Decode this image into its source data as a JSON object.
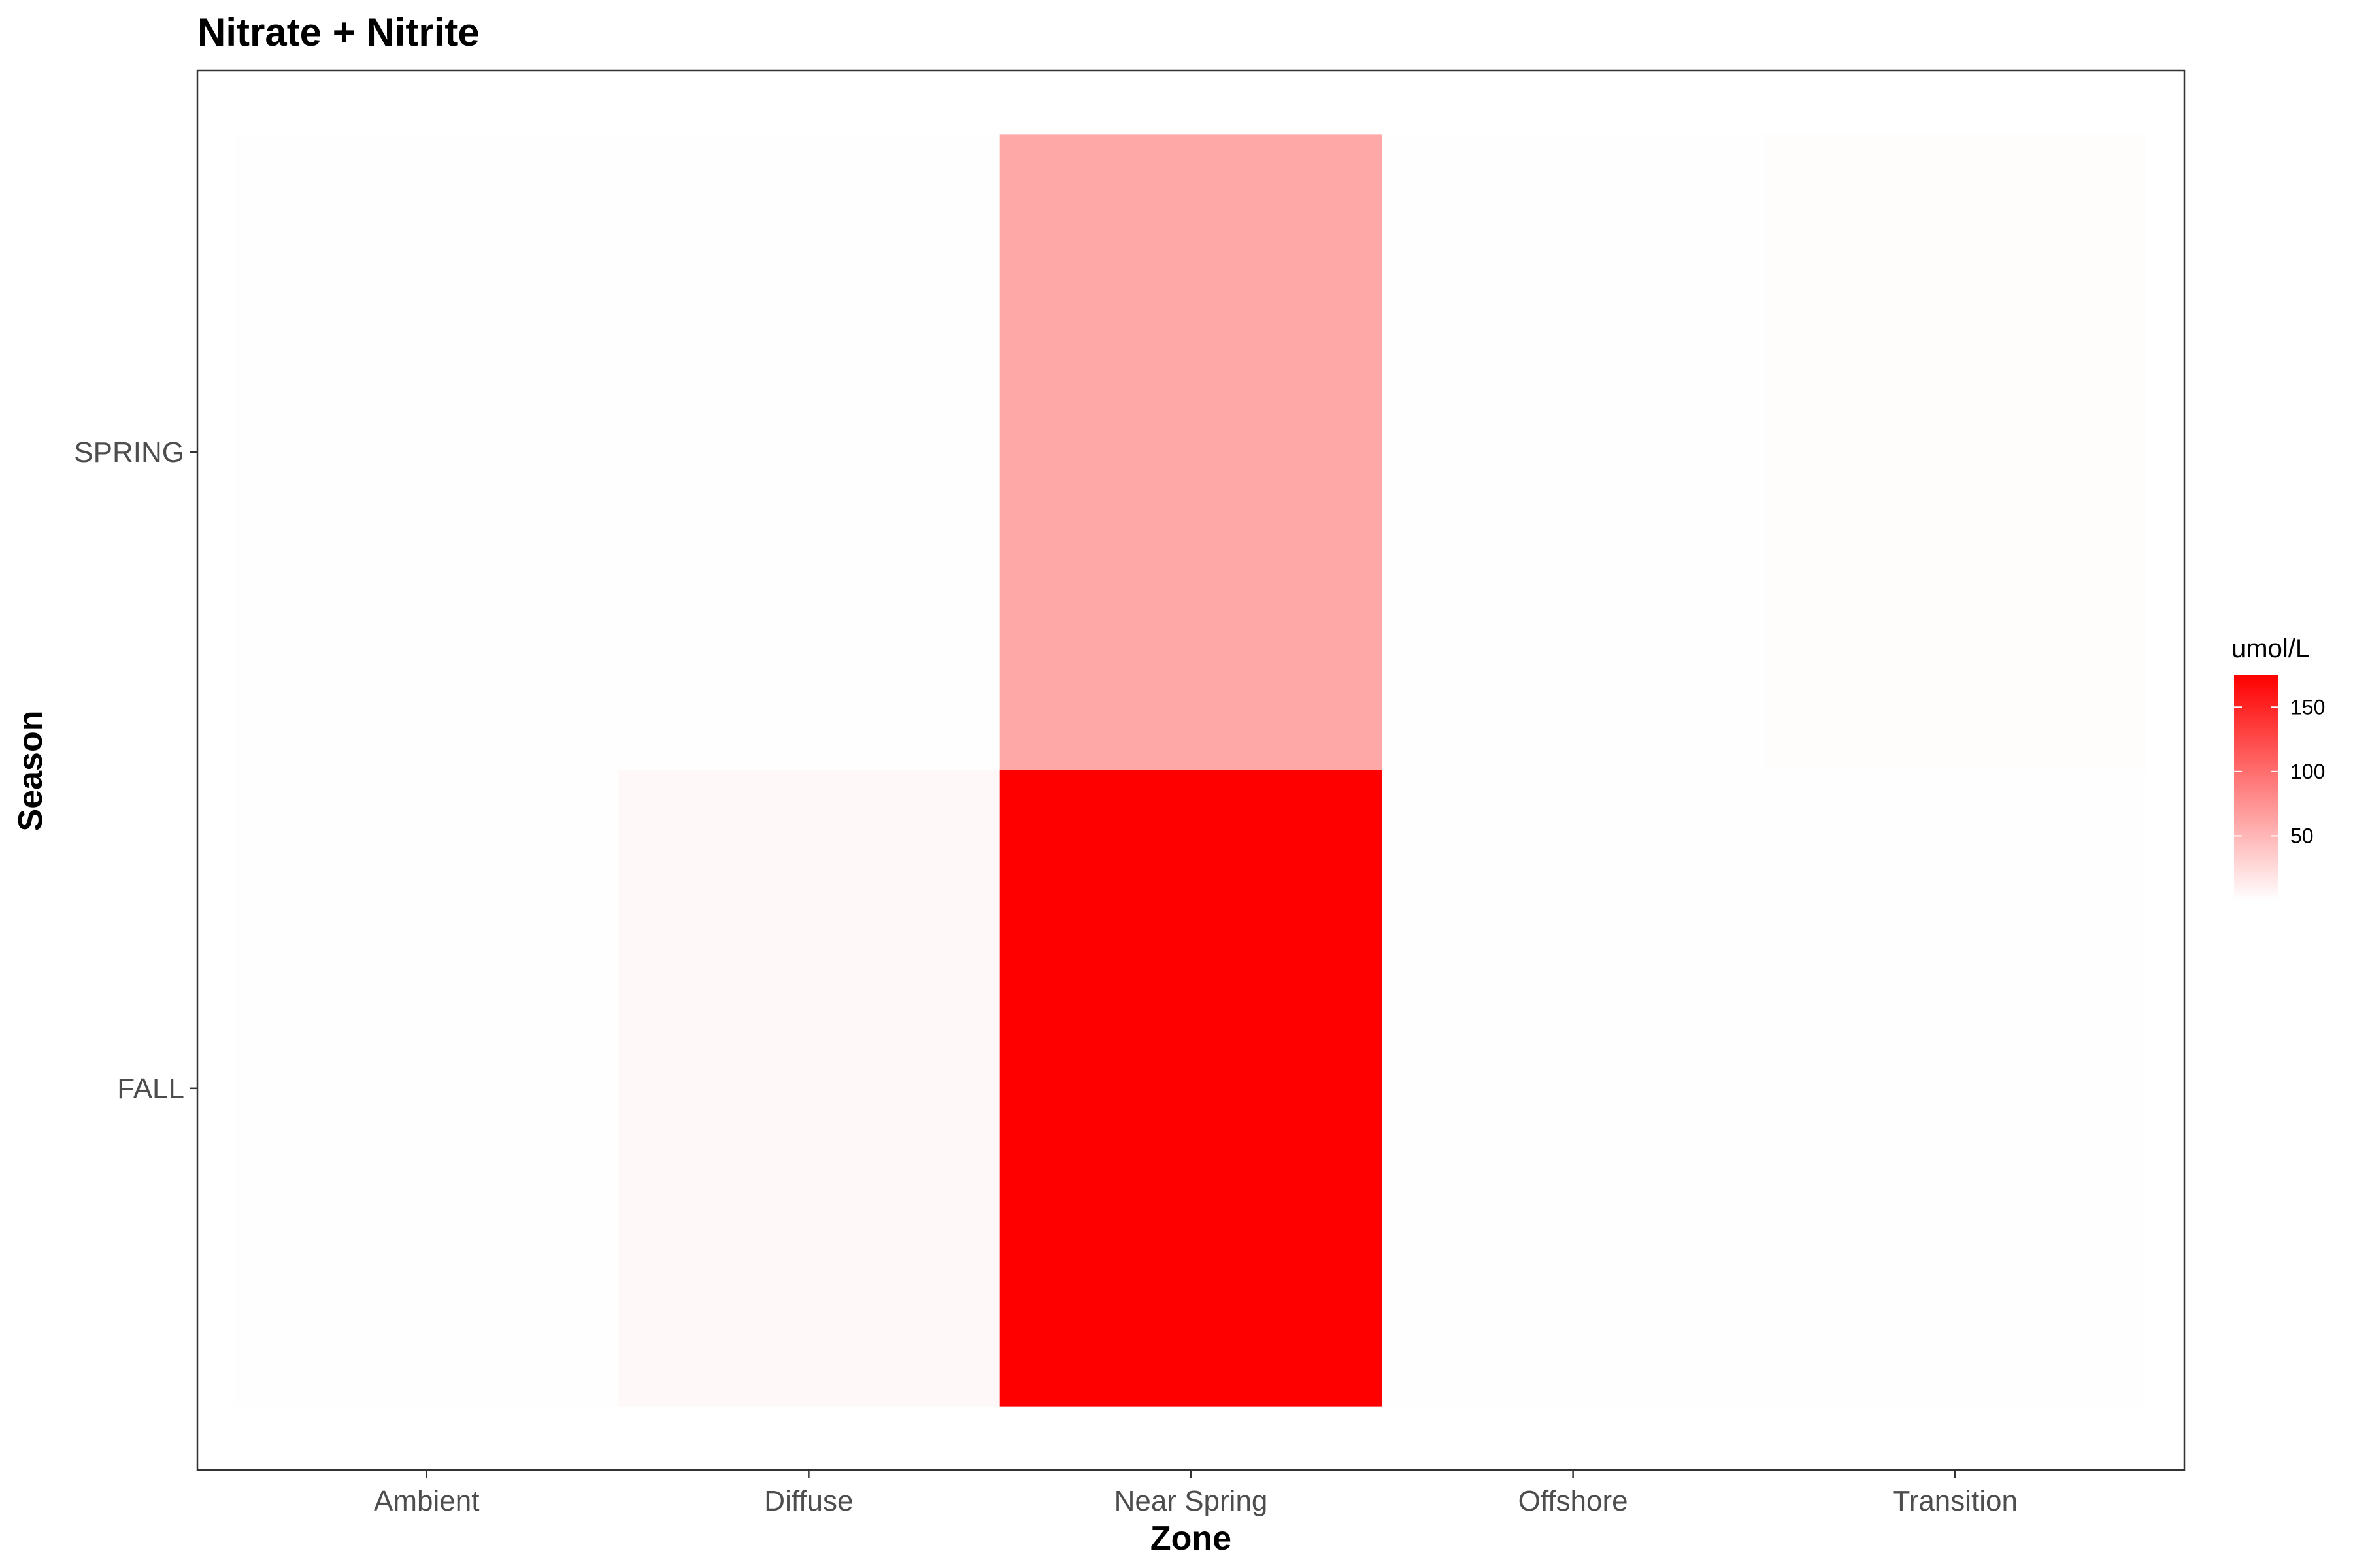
{
  "chart_data": {
    "type": "heatmap",
    "title": "Nitrate + Nitrite",
    "xlabel": "Zone",
    "ylabel": "Season",
    "x_categories": [
      "Ambient",
      "Diffuse",
      "Near Spring",
      "Offshore",
      "Transition"
    ],
    "y_categories": [
      "FALL",
      "SPRING"
    ],
    "cells": [
      {
        "x": "Ambient",
        "y": "FALL",
        "value": 0.5
      },
      {
        "x": "Ambient",
        "y": "SPRING",
        "value": 0.5
      },
      {
        "x": "Diffuse",
        "y": "FALL",
        "value": 5
      },
      {
        "x": "Diffuse",
        "y": "SPRING",
        "value": 0.5
      },
      {
        "x": "Near Spring",
        "y": "FALL",
        "value": 175
      },
      {
        "x": "Near Spring",
        "y": "SPRING",
        "value": 60
      },
      {
        "x": "Offshore",
        "y": "FALL",
        "value": 0.5
      },
      {
        "x": "Offshore",
        "y": "SPRING",
        "value": 0.5
      },
      {
        "x": "Transition",
        "y": "FALL",
        "value": 0.5
      },
      {
        "x": "Transition",
        "y": "SPRING",
        "value": 2
      }
    ],
    "legend": {
      "title": "umol/L",
      "position": "right",
      "ticks": [
        50,
        100,
        150
      ],
      "range": [
        0,
        175
      ],
      "low_color": "#ffffff",
      "high_color": "#ff0000"
    },
    "grid": false
  }
}
